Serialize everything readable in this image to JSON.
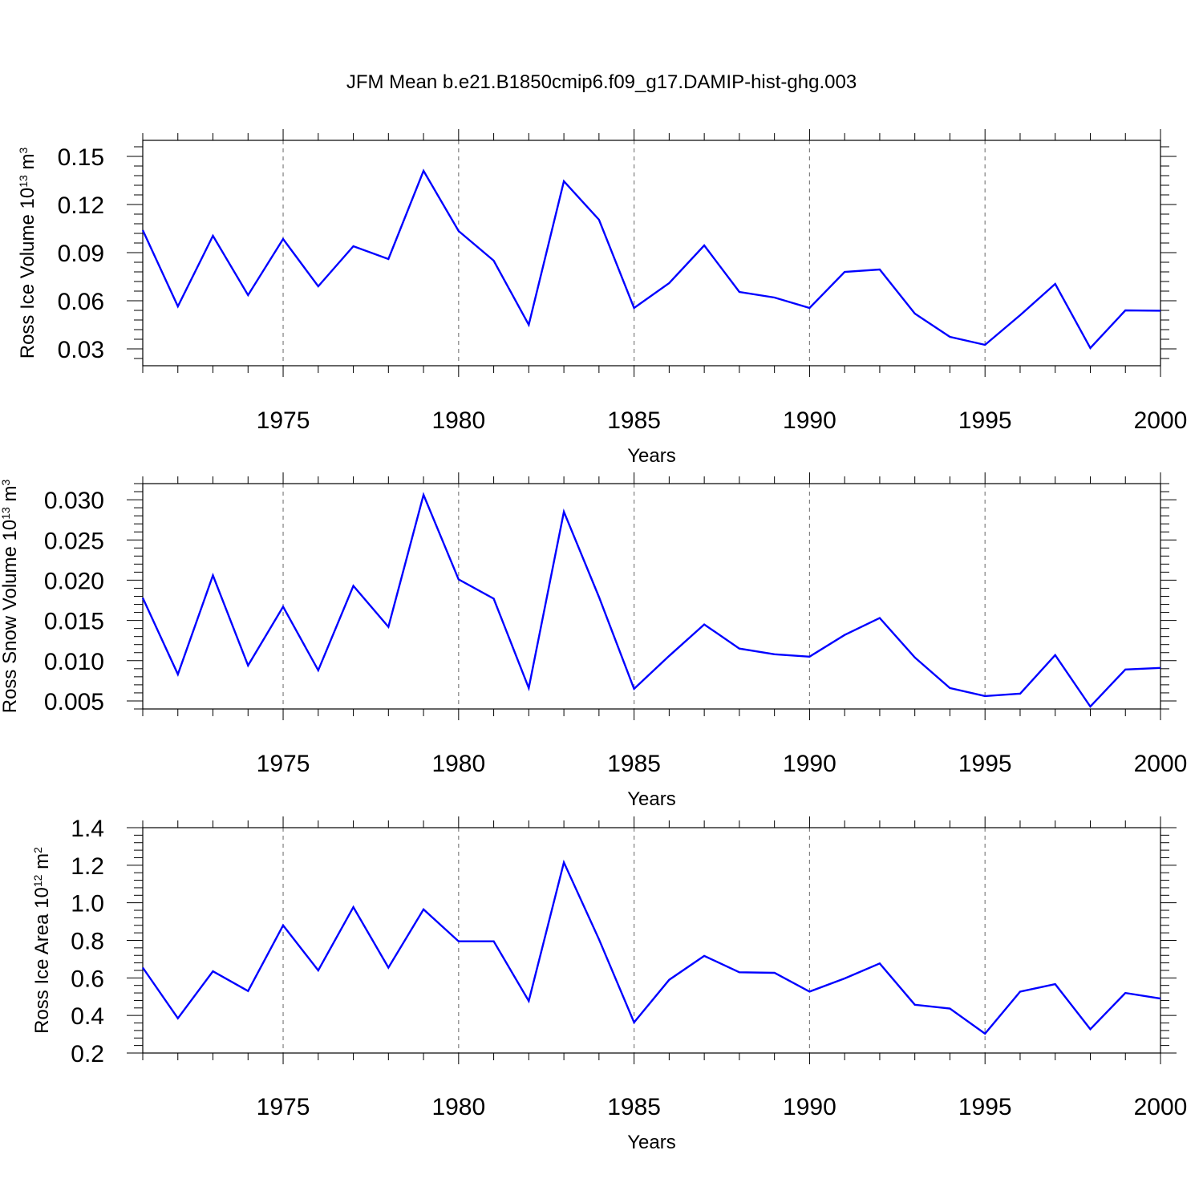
{
  "title": "JFM Mean b.e21.B1850cmip6.f09_g17.DAMIP-hist-ghg.003",
  "colors": {
    "line": "#0000ff",
    "frame": "#000000",
    "grid": "#808080"
  },
  "chart_data": [
    {
      "type": "line",
      "ylabel": {
        "text": "Ross Ice Volume 10",
        "sup": "13",
        "unit": " m",
        "unit_sup": "3"
      },
      "xlabel": "Years",
      "xlim": [
        1971,
        2000
      ],
      "ylim": [
        0.0195,
        0.16
      ],
      "xticks": [
        "1975",
        "1980",
        "1985",
        "1990",
        "1995",
        "2000"
      ],
      "yticks": [
        "0.03",
        "0.06",
        "0.09",
        "0.12",
        "0.15"
      ],
      "ytick_values": [
        0.03,
        0.06,
        0.09,
        0.12,
        0.15
      ],
      "series": [
        {
          "x": [
            1971,
            1972,
            1973,
            1974,
            1975,
            1976,
            1977,
            1978,
            1979,
            1980,
            1981,
            1982,
            1983,
            1984,
            1985,
            1986,
            1987,
            1988,
            1989,
            1990,
            1991,
            1992,
            1993,
            1994,
            1995,
            1996,
            1997,
            1998,
            1999,
            2000
          ],
          "values": [
            0.104,
            0.0565,
            0.1005,
            0.0635,
            0.0985,
            0.069,
            0.094,
            0.086,
            0.141,
            0.1035,
            0.085,
            0.045,
            0.1345,
            0.1105,
            0.0555,
            0.071,
            0.0945,
            0.0655,
            0.062,
            0.0555,
            0.078,
            0.0795,
            0.052,
            0.0375,
            0.0325,
            0.051,
            0.0705,
            0.0305,
            0.054,
            0.0538
          ]
        }
      ]
    },
    {
      "type": "line",
      "ylabel": {
        "text": "Ross Snow Volume 10",
        "sup": "13",
        "unit": " m",
        "unit_sup": "3"
      },
      "xlabel": "Years",
      "xlim": [
        1971,
        2000
      ],
      "ylim": [
        0.004,
        0.032
      ],
      "xticks": [
        "1975",
        "1980",
        "1985",
        "1990",
        "1995",
        "2000"
      ],
      "yticks": [
        "0.005",
        "0.010",
        "0.015",
        "0.020",
        "0.025",
        "0.030"
      ],
      "ytick_values": [
        0.005,
        0.01,
        0.015,
        0.02,
        0.025,
        0.03
      ],
      "series": [
        {
          "x": [
            1971,
            1972,
            1973,
            1974,
            1975,
            1976,
            1977,
            1978,
            1979,
            1980,
            1981,
            1982,
            1983,
            1984,
            1985,
            1986,
            1987,
            1988,
            1989,
            1990,
            1991,
            1992,
            1993,
            1994,
            1995,
            1996,
            1997,
            1998,
            1999,
            2000
          ],
          "values": [
            0.0178,
            0.0083,
            0.0206,
            0.0094,
            0.0167,
            0.0088,
            0.0193,
            0.0142,
            0.0306,
            0.0201,
            0.0177,
            0.0066,
            0.0285,
            0.0179,
            0.0065,
            0.0106,
            0.0145,
            0.0115,
            0.0108,
            0.0105,
            0.0132,
            0.0153,
            0.0104,
            0.0066,
            0.0056,
            0.0059,
            0.0107,
            0.0043,
            0.0089,
            0.0091
          ]
        }
      ]
    },
    {
      "type": "line",
      "ylabel": {
        "text": "Ross Ice Area 10",
        "sup": "12",
        "unit": " m",
        "unit_sup": "2"
      },
      "xlabel": "Years",
      "xlim": [
        1971,
        2000
      ],
      "ylim": [
        0.2,
        1.4
      ],
      "xticks": [
        "1975",
        "1980",
        "1985",
        "1990",
        "1995",
        "2000"
      ],
      "yticks": [
        "0.2",
        "0.4",
        "0.6",
        "0.8",
        "1.0",
        "1.2",
        "1.4"
      ],
      "ytick_values": [
        0.2,
        0.4,
        0.6,
        0.8,
        1.0,
        1.2,
        1.4
      ],
      "series": [
        {
          "x": [
            1971,
            1972,
            1973,
            1974,
            1975,
            1976,
            1977,
            1978,
            1979,
            1980,
            1981,
            1982,
            1983,
            1984,
            1985,
            1986,
            1987,
            1988,
            1989,
            1990,
            1991,
            1992,
            1993,
            1994,
            1995,
            1996,
            1997,
            1998,
            1999,
            2000
          ],
          "values": [
            0.655,
            0.385,
            0.635,
            0.53,
            0.88,
            0.64,
            0.977,
            0.655,
            0.965,
            0.795,
            0.795,
            0.477,
            1.215,
            0.805,
            0.363,
            0.59,
            0.717,
            0.63,
            0.627,
            0.527,
            0.597,
            0.677,
            0.457,
            0.437,
            0.303,
            0.527,
            0.567,
            0.327,
            0.52,
            0.49
          ]
        }
      ]
    }
  ]
}
